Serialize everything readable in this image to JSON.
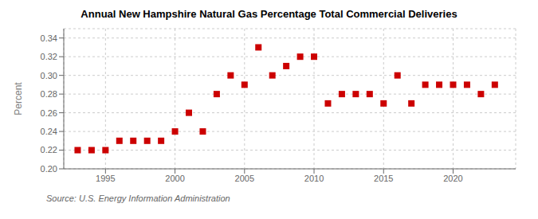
{
  "chart_data": {
    "type": "scatter",
    "title": "Annual New Hampshire Natural Gas Percentage Total Commercial Deliveries",
    "ylabel": "Percent",
    "annotation": "Source: U.S. Energy Information Administration",
    "x": [
      1993,
      1994,
      1995,
      1996,
      1997,
      1998,
      1999,
      2000,
      2001,
      2002,
      2003,
      2004,
      2005,
      2006,
      2007,
      2008,
      2009,
      2010,
      2011,
      2012,
      2013,
      2014,
      2015,
      2016,
      2017,
      2018,
      2019,
      2020,
      2021,
      2022,
      2023
    ],
    "values": [
      0.22,
      0.22,
      0.22,
      0.23,
      0.23,
      0.23,
      0.23,
      0.24,
      0.26,
      0.24,
      0.28,
      0.3,
      0.29,
      0.33,
      0.3,
      0.31,
      0.32,
      0.32,
      0.27,
      0.28,
      0.28,
      0.28,
      0.27,
      0.3,
      0.27,
      0.29,
      0.29,
      0.29,
      0.29,
      0.28,
      0.29
    ],
    "color": "#cc0000",
    "marker": "square",
    "xlim": [
      1992.0,
      2024.5
    ],
    "xticks": [
      1995,
      2000,
      2005,
      2010,
      2015,
      2020
    ],
    "ylim": [
      0.2,
      0.35
    ],
    "yticks": [
      {
        "value": 0.2,
        "label": "0.20"
      },
      0.22,
      0.24,
      0.26,
      0.28,
      {
        "value": 0.3,
        "label": "0.30"
      },
      0.32,
      0.34
    ],
    "grid": true
  }
}
